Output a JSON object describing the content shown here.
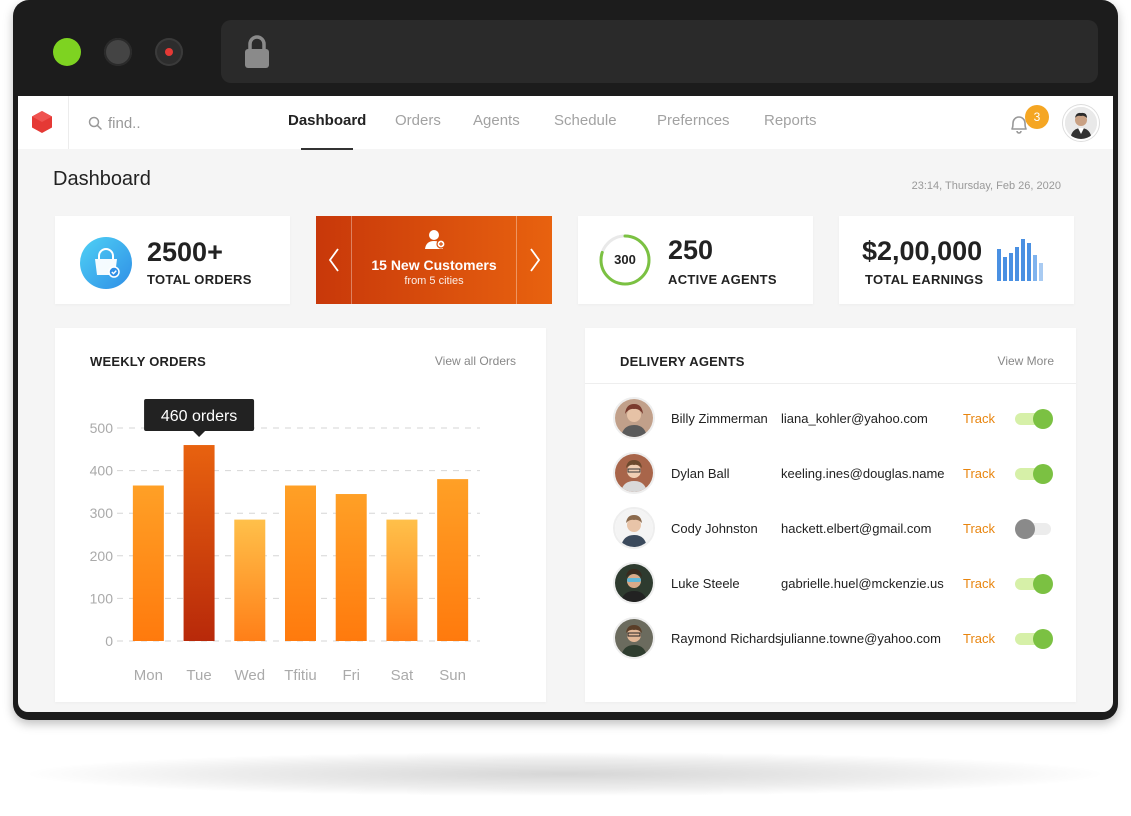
{
  "colors": {
    "accent": "#e8620f",
    "brand": "#e53935",
    "success": "#7bc142",
    "link": "#e8850f",
    "dark": "#1c1c1c"
  },
  "window": {
    "traffic_lights": [
      "green",
      "gray",
      "red"
    ],
    "lock_icon": "lock-icon"
  },
  "nav": {
    "logo_icon": "hexagon-logo-icon",
    "search": {
      "placeholder": "find..",
      "icon": "search-icon"
    },
    "tabs": [
      {
        "label": "Dashboard",
        "active": true
      },
      {
        "label": "Orders",
        "active": false
      },
      {
        "label": "Agents",
        "active": false
      },
      {
        "label": "Schedule",
        "active": false
      },
      {
        "label": "Prefernces",
        "active": false
      },
      {
        "label": "Reports",
        "active": false
      }
    ],
    "notifications": {
      "icon": "bell-icon",
      "count": "3"
    },
    "avatar_icon": "user-avatar"
  },
  "page": {
    "title": "Dashboard",
    "datetime": "23:14, Thursday, Feb 26, 2020"
  },
  "stats": {
    "orders": {
      "value": "2500+",
      "label": "TOTAL ORDERS",
      "icon": "shopping-bag-icon"
    },
    "customers": {
      "title": "15 New Customers",
      "subtitle": "from 5 cities",
      "icon": "add-user-icon"
    },
    "agents": {
      "ring_value": "300",
      "ring_fraction": 0.8,
      "value": "250",
      "label": "ACTIVE AGENTS"
    },
    "earnings": {
      "value": "$2,00,000",
      "label": "TOTAL EARNINGS",
      "icon": "bar-chart-icon"
    }
  },
  "weekly_orders": {
    "title": "WEEKLY ORDERS",
    "link": "View all Orders",
    "tooltip": "460 orders"
  },
  "chart_data": {
    "type": "bar",
    "title": "WEEKLY ORDERS",
    "categories": [
      "Mon",
      "Tue",
      "Wed",
      "Thu",
      "Fri",
      "Sat",
      "Sun"
    ],
    "category_labels": [
      "Mon",
      "Tue",
      "Wed",
      "Tfitiu",
      "Fri",
      "Sat",
      "Sun"
    ],
    "values": [
      365,
      460,
      285,
      365,
      345,
      285,
      380
    ],
    "highlight_index": 1,
    "ylim": [
      0,
      500
    ],
    "yticks": [
      0,
      100,
      200,
      300,
      400,
      500
    ],
    "grid": true,
    "xlabel": "",
    "ylabel": ""
  },
  "delivery_agents": {
    "title": "DELIVERY AGENTS",
    "link": "View More",
    "track_label": "Track",
    "agents": [
      {
        "name": "Billy Zimmerman",
        "email": "liana_kohler@yahoo.com",
        "active": true
      },
      {
        "name": "Dylan Ball",
        "email": "keeling.ines@douglas.name",
        "active": true
      },
      {
        "name": "Cody Johnston",
        "email": "hackett.elbert@gmail.com",
        "active": false
      },
      {
        "name": "Luke Steele",
        "email": "gabrielle.huel@mckenzie.us",
        "active": true
      },
      {
        "name": "Raymond Richards",
        "email": "julianne.towne@yahoo.com",
        "active": true
      }
    ]
  }
}
